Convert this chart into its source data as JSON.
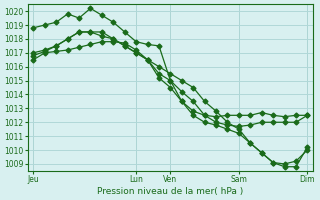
{
  "xlabel": "Pression niveau de la mer( hPa )",
  "ylabel": "",
  "background_color": "#d8f0f0",
  "grid_color": "#b0d8d8",
  "line_color": "#1a6b1a",
  "ylim": [
    1008.5,
    1020.5
  ],
  "xtick_labels": [
    "Jeu",
    "Lun",
    "Ven",
    "Sam",
    "Dim"
  ],
  "xtick_positions": [
    0,
    9,
    12,
    18,
    24
  ],
  "series1": [
    1016.5,
    1017.0,
    1017.1,
    1017.2,
    1017.4,
    1017.6,
    1017.8,
    1017.8,
    1017.7,
    1017.2,
    1016.5,
    1015.2,
    1014.5,
    1013.5,
    1012.8,
    1012.5,
    1012.4,
    1012.5,
    1012.5,
    1012.5,
    1012.7,
    1012.5,
    1012.4,
    1012.5,
    1012.5
  ],
  "series2": [
    1018.8,
    1019.0,
    1019.2,
    1019.8,
    1019.5,
    1020.2,
    1019.7,
    1019.2,
    1018.5,
    1017.8,
    1017.6,
    1017.5,
    1015.0,
    1014.2,
    1013.5,
    1012.5,
    1012.0,
    1011.8,
    1011.7,
    1011.8,
    1012.0,
    1012.0,
    1012.0,
    1012.0,
    1012.5
  ],
  "series3": [
    1016.8,
    1017.1,
    1017.5,
    1018.0,
    1018.5,
    1018.5,
    1018.5,
    1018.0,
    1017.5,
    1017.0,
    1016.5,
    1015.5,
    1015.0,
    1013.5,
    1012.5,
    1012.0,
    1011.8,
    1011.5,
    1011.2,
    1010.5,
    1009.8,
    1009.1,
    1008.8,
    1008.8,
    1010.2
  ],
  "series4": [
    1017.0,
    1017.2,
    1017.5,
    1018.0,
    1018.5,
    1018.5,
    1018.2,
    1018.0,
    1017.5,
    1017.0,
    1016.5,
    1016.0,
    1015.5,
    1015.0,
    1014.5,
    1013.5,
    1012.8,
    1012.0,
    1011.5,
    1010.5,
    1009.8,
    1009.1,
    1009.0,
    1009.2,
    1010.0
  ]
}
